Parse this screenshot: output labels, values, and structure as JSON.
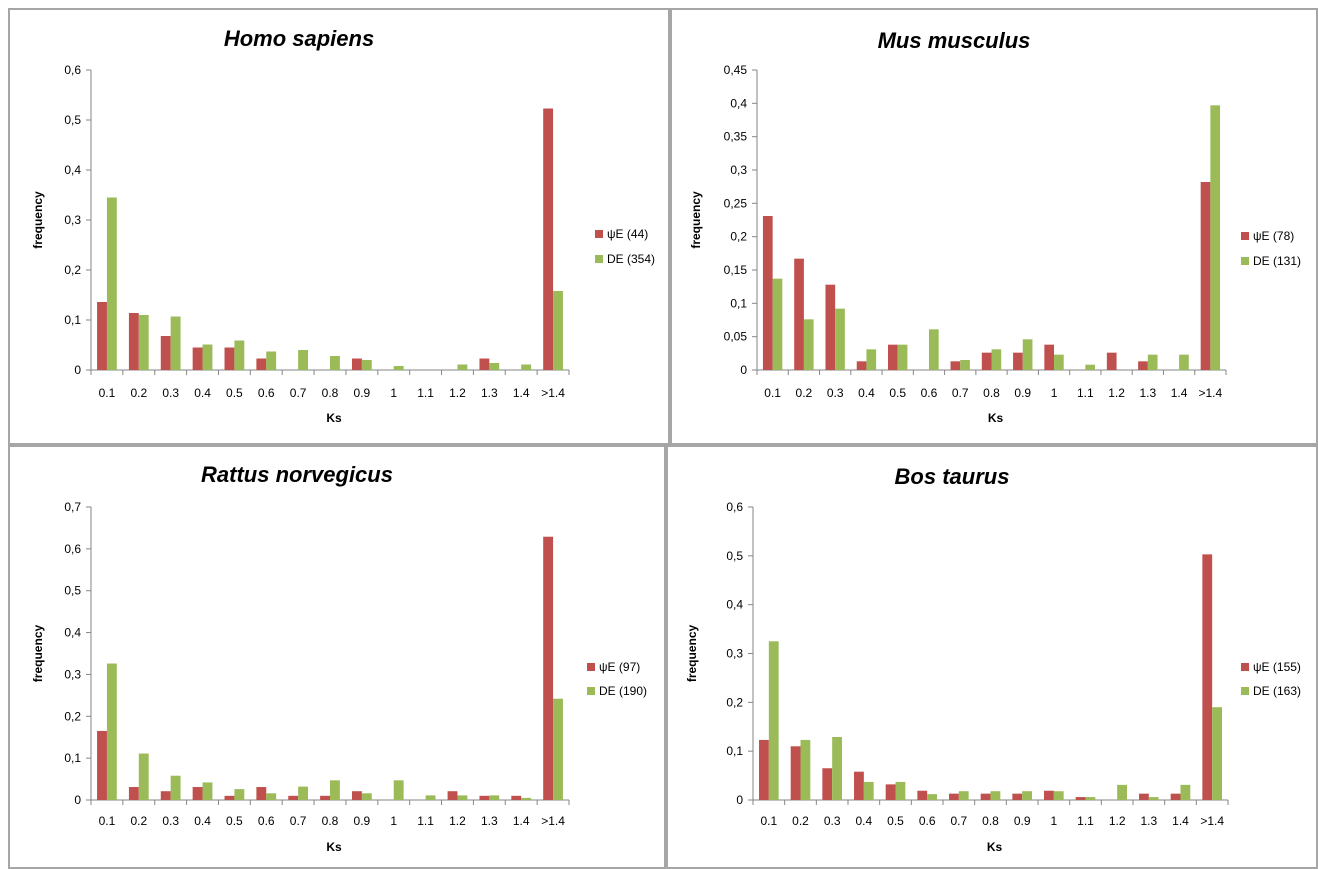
{
  "colors": {
    "psiE": "#c0504d",
    "DE": "#9bbb59",
    "axis": "#868686"
  },
  "chart_data": [
    {
      "type": "bar",
      "title": "Homo sapiens",
      "xlabel": "Ks",
      "ylabel": "frequency",
      "ylim": [
        0,
        0.6
      ],
      "yticks": [
        "0",
        "0,1",
        "0,2",
        "0,3",
        "0,4",
        "0,5",
        "0,6"
      ],
      "ystep": 0.1,
      "categories": [
        "0.1",
        "0.2",
        "0.3",
        "0.4",
        "0.5",
        "0.6",
        "0.7",
        "0.8",
        "0.9",
        "1",
        "1.1",
        "1.2",
        "1.3",
        "1.4",
        ">1.4"
      ],
      "series": [
        {
          "name": "ψE (44)",
          "values": [
            0.136,
            0.114,
            0.068,
            0.045,
            0.045,
            0.023,
            0,
            0,
            0.023,
            0,
            0,
            0,
            0.023,
            0,
            0.523
          ]
        },
        {
          "name": "DE (354)",
          "values": [
            0.345,
            0.11,
            0.107,
            0.051,
            0.059,
            0.037,
            0.04,
            0.028,
            0.02,
            0.008,
            0,
            0.011,
            0.014,
            0.011,
            0.158
          ]
        }
      ],
      "legend": "right",
      "grid": false
    },
    {
      "type": "bar",
      "title": "Mus musculus",
      "xlabel": "Ks",
      "ylabel": "frequency",
      "ylim": [
        0,
        0.45
      ],
      "yticks": [
        "0",
        "0,05",
        "0,1",
        "0,15",
        "0,2",
        "0,25",
        "0,3",
        "0,35",
        "0,4",
        "0,45"
      ],
      "ystep": 0.05,
      "categories": [
        "0.1",
        "0.2",
        "0.3",
        "0.4",
        "0.5",
        "0.6",
        "0.7",
        "0.8",
        "0.9",
        "1",
        "1.1",
        "1.2",
        "1.3",
        "1.4",
        ">1.4"
      ],
      "series": [
        {
          "name": "ψE (78)",
          "values": [
            0.231,
            0.167,
            0.128,
            0.013,
            0.038,
            0,
            0.013,
            0.026,
            0.026,
            0.038,
            0,
            0.026,
            0.013,
            0,
            0.282
          ]
        },
        {
          "name": "DE (131)",
          "values": [
            0.137,
            0.076,
            0.092,
            0.031,
            0.038,
            0.061,
            0.015,
            0.031,
            0.046,
            0.023,
            0.008,
            0,
            0.023,
            0.023,
            0.397
          ]
        }
      ],
      "legend": "right",
      "grid": false
    },
    {
      "type": "bar",
      "title": "Rattus norvegicus",
      "xlabel": "Ks",
      "ylabel": "frequency",
      "ylim": [
        0,
        0.7
      ],
      "yticks": [
        "0",
        "0,1",
        "0,2",
        "0,3",
        "0,4",
        "0,5",
        "0,6",
        "0,7"
      ],
      "ystep": 0.1,
      "categories": [
        "0.1",
        "0.2",
        "0.3",
        "0.4",
        "0.5",
        "0.6",
        "0.7",
        "0.8",
        "0.9",
        "1",
        "1.1",
        "1.2",
        "1.3",
        "1.4",
        ">1.4"
      ],
      "series": [
        {
          "name": "ψE (97)",
          "values": [
            0.165,
            0.031,
            0.021,
            0.031,
            0.01,
            0.031,
            0.01,
            0.01,
            0.021,
            0,
            0,
            0.021,
            0.01,
            0.01,
            0.629
          ]
        },
        {
          "name": "DE (190)",
          "values": [
            0.326,
            0.111,
            0.058,
            0.042,
            0.026,
            0.016,
            0.032,
            0.047,
            0.016,
            0.047,
            0.011,
            0.011,
            0.011,
            0.005,
            0.242
          ]
        }
      ],
      "legend": "right",
      "grid": false
    },
    {
      "type": "bar",
      "title": "Bos taurus",
      "xlabel": "Ks",
      "ylabel": "frequency",
      "ylim": [
        0,
        0.6
      ],
      "yticks": [
        "0",
        "0,1",
        "0,2",
        "0,3",
        "0,4",
        "0,5",
        "0,6"
      ],
      "ystep": 0.1,
      "categories": [
        "0.1",
        "0.2",
        "0.3",
        "0.4",
        "0.5",
        "0.6",
        "0.7",
        "0.8",
        "0.9",
        "1",
        "1.1",
        "1.2",
        "1.3",
        "1.4",
        ">1.4"
      ],
      "series": [
        {
          "name": "ψE (155)",
          "values": [
            0.123,
            0.11,
            0.065,
            0.058,
            0.032,
            0.019,
            0.013,
            0.013,
            0.013,
            0.019,
            0.006,
            0,
            0.013,
            0.013,
            0.503
          ]
        },
        {
          "name": "DE (163)",
          "values": [
            0.325,
            0.123,
            0.129,
            0.037,
            0.037,
            0.012,
            0.018,
            0.018,
            0.018,
            0.018,
            0.006,
            0.031,
            0.006,
            0.031,
            0.19
          ]
        }
      ],
      "legend": "right",
      "grid": false
    }
  ]
}
